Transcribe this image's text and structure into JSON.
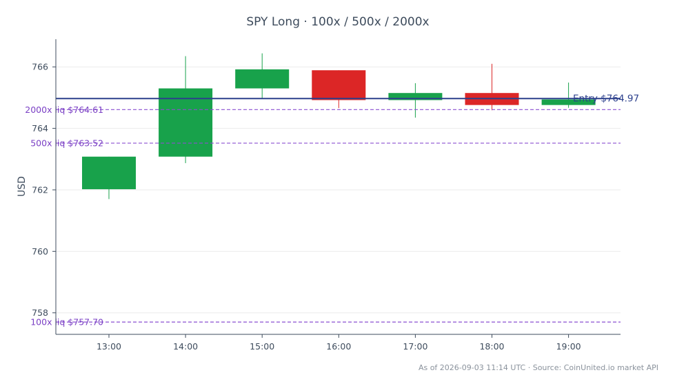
{
  "chart_data": {
    "type": "candlestick",
    "title": "SPY Long · 100x / 500x / 2000x",
    "ylabel": "USD",
    "ylim": [
      757.3,
      766.9
    ],
    "yticks": [
      758,
      760,
      762,
      764,
      766
    ],
    "grid": true,
    "categories": [
      "13:00",
      "14:00",
      "15:00",
      "16:00",
      "17:00",
      "18:00",
      "19:00"
    ],
    "candles": [
      {
        "time": "13:00",
        "open": 762.02,
        "high": 763.08,
        "low": 761.7,
        "close": 763.08
      },
      {
        "time": "14:00",
        "open": 763.08,
        "high": 766.35,
        "low": 762.87,
        "close": 765.3
      },
      {
        "time": "15:00",
        "open": 765.3,
        "high": 766.44,
        "low": 764.97,
        "close": 765.92
      },
      {
        "time": "16:00",
        "open": 765.89,
        "high": 765.89,
        "low": 764.66,
        "close": 764.92
      },
      {
        "time": "17:00",
        "open": 764.92,
        "high": 765.47,
        "low": 764.35,
        "close": 765.15
      },
      {
        "time": "18:00",
        "open": 765.15,
        "high": 766.1,
        "low": 764.59,
        "close": 764.76
      },
      {
        "time": "19:00",
        "open": 764.76,
        "high": 765.49,
        "low": 764.67,
        "close": 764.94
      }
    ],
    "up_color": "#18a24b",
    "down_color": "#dc2626",
    "entry": {
      "label": "Entry $764.97",
      "value": 764.97,
      "color": "#2b3f8c"
    },
    "liquidations": [
      {
        "label": "2000x liq $764.61",
        "value": 764.61
      },
      {
        "label": "500x liq $763.52",
        "value": 763.52
      },
      {
        "label": "100x liq $757.70",
        "value": 757.7
      }
    ],
    "liq_color": "#8a4fd0",
    "footer": "As of 2026-09-03 11:14 UTC · Source: CoinUnited.io market API"
  }
}
